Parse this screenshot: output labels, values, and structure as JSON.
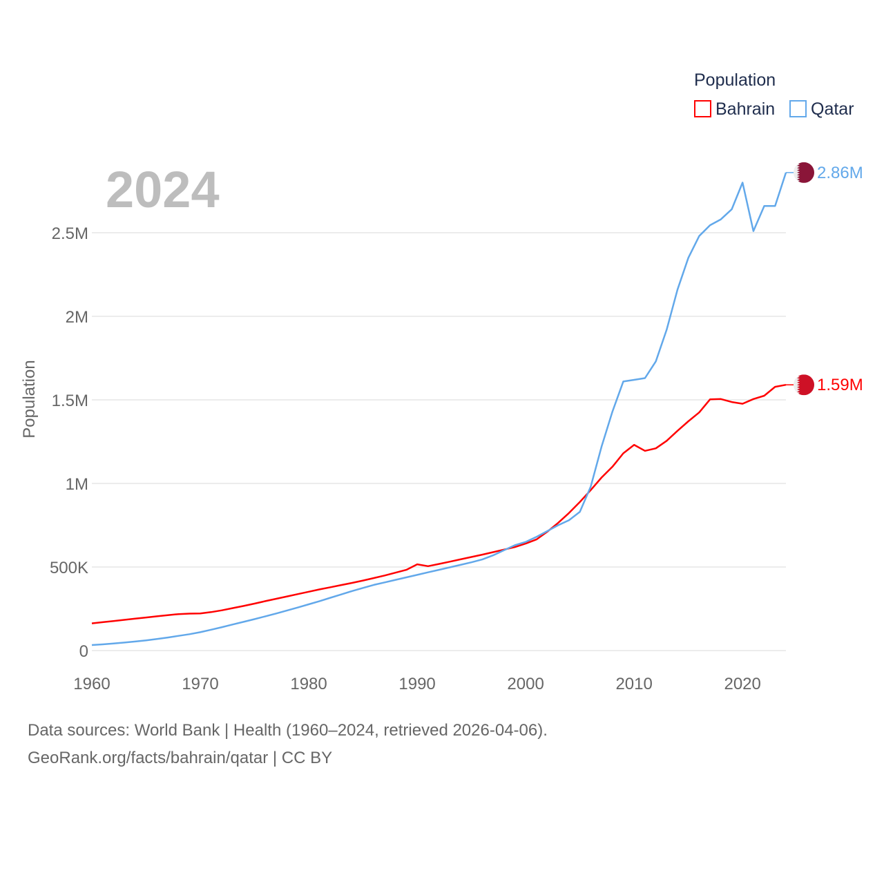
{
  "chart_data": {
    "type": "line",
    "title_year": "2024",
    "ylabel": "Population",
    "xlabel": "",
    "legend": {
      "title": "Population",
      "placement": "top-right"
    },
    "x_ticks": [
      1960,
      1970,
      1980,
      1990,
      2000,
      2010,
      2020
    ],
    "x_tick_labels": [
      "1960",
      "1970",
      "1980",
      "1990",
      "2000",
      "2010",
      "2020"
    ],
    "y_ticks": [
      0,
      500000,
      1000000,
      1500000,
      2000000,
      2500000
    ],
    "y_tick_labels": [
      "0",
      "500K",
      "1M",
      "1.5M",
      "2M",
      "2.5M"
    ],
    "xlim": [
      1960,
      2024
    ],
    "ylim": [
      0,
      2500000
    ],
    "grid": true,
    "x": [
      1960,
      1961,
      1962,
      1963,
      1964,
      1965,
      1966,
      1967,
      1968,
      1969,
      1970,
      1971,
      1972,
      1973,
      1974,
      1975,
      1976,
      1977,
      1978,
      1979,
      1980,
      1981,
      1982,
      1983,
      1984,
      1985,
      1986,
      1987,
      1988,
      1989,
      1990,
      1991,
      1992,
      1993,
      1994,
      1995,
      1996,
      1997,
      1998,
      1999,
      2000,
      2001,
      2002,
      2003,
      2004,
      2005,
      2006,
      2007,
      2008,
      2009,
      2010,
      2011,
      2012,
      2013,
      2014,
      2015,
      2016,
      2017,
      2018,
      2019,
      2020,
      2021,
      2022,
      2023,
      2024
    ],
    "series": [
      {
        "name": "Bahrain",
        "color": "#ff0000",
        "end_label": "1.59M",
        "flag_color": "#ce1126",
        "values": [
          163000,
          170000,
          177000,
          184000,
          191000,
          198000,
          205000,
          212000,
          218000,
          221000,
          222000,
          230000,
          241000,
          254000,
          267000,
          281000,
          296000,
          310000,
          324000,
          338000,
          352000,
          366000,
          379000,
          392000,
          405000,
          419000,
          434000,
          449000,
          466000,
          483000,
          516000,
          505000,
          518000,
          532000,
          546000,
          560000,
          574000,
          589000,
          604000,
          619000,
          640000,
          665000,
          711000,
          764000,
          823000,
          889000,
          960000,
          1035000,
          1100000,
          1180000,
          1231000,
          1195000,
          1210000,
          1255000,
          1315000,
          1372000,
          1425000,
          1503000,
          1505000,
          1487000,
          1477000,
          1505000,
          1525000,
          1578000,
          1590000
        ]
      },
      {
        "name": "Qatar",
        "color": "#62a8ea",
        "end_label": "2.86M",
        "flag_color": "#8a1538",
        "values": [
          33000,
          37000,
          42000,
          48000,
          54000,
          61000,
          69000,
          78000,
          88000,
          98000,
          110000,
          125000,
          140000,
          156000,
          172000,
          188000,
          205000,
          222000,
          240000,
          258000,
          277000,
          296000,
          316000,
          336000,
          356000,
          375000,
          393000,
          408000,
          423000,
          438000,
          453000,
          468000,
          483000,
          498000,
          513000,
          528000,
          545000,
          570000,
          600000,
          630000,
          650000,
          680000,
          715000,
          750000,
          780000,
          830000,
          980000,
          1220000,
          1430000,
          1610000,
          1620000,
          1630000,
          1730000,
          1920000,
          2160000,
          2350000,
          2480000,
          2545000,
          2580000,
          2640000,
          2800000,
          2510000,
          2660000,
          2660000,
          2860000
        ]
      }
    ]
  },
  "footer": {
    "line1": "Data sources: World Bank | Health (1960–2024, retrieved 2026-04-06).",
    "line2": "GeoRank.org/facts/bahrain/qatar | CC BY"
  }
}
